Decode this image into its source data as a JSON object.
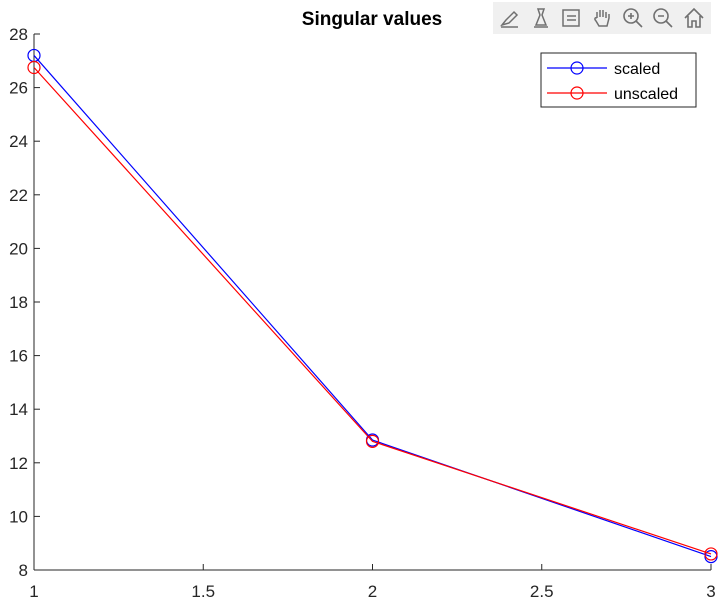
{
  "toolbar": {
    "icons": [
      "brush-edit-icon",
      "data-tips-icon",
      "legend-toggle-icon",
      "pan-hand-icon",
      "zoom-in-icon",
      "zoom-out-icon",
      "home-icon"
    ]
  },
  "chart_data": {
    "type": "line",
    "title": "Singular values",
    "xlabel": "",
    "ylabel": "",
    "xlim": [
      1,
      3
    ],
    "ylim": [
      8,
      28
    ],
    "xticks": [
      1,
      1.5,
      2,
      2.5,
      3
    ],
    "xtick_labels": [
      "1",
      "1.5",
      "2",
      "2.5",
      "3"
    ],
    "yticks": [
      8,
      10,
      12,
      14,
      16,
      18,
      20,
      22,
      24,
      26,
      28
    ],
    "ytick_labels": [
      "8",
      "10",
      "12",
      "14",
      "16",
      "18",
      "20",
      "22",
      "24",
      "26",
      "28"
    ],
    "grid": false,
    "legend_position": "top-right",
    "marker": "circle",
    "series": [
      {
        "name": "scaled",
        "color": "#0000ff",
        "x": [
          1,
          2,
          3
        ],
        "y": [
          27.2,
          12.85,
          8.5
        ]
      },
      {
        "name": "unscaled",
        "color": "#ff0000",
        "x": [
          1,
          2,
          3
        ],
        "y": [
          26.75,
          12.8,
          8.6
        ]
      }
    ]
  }
}
